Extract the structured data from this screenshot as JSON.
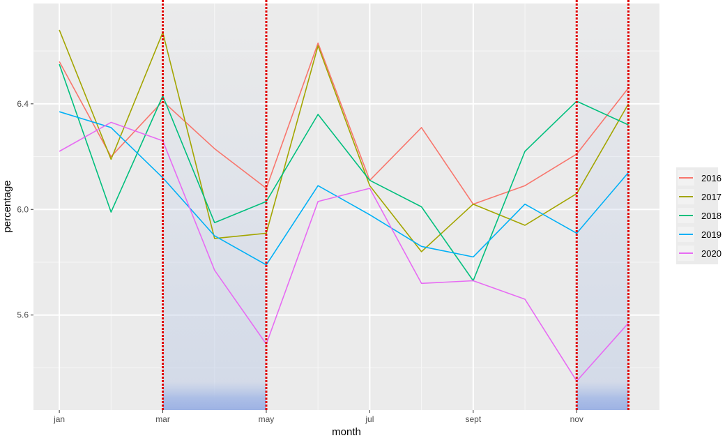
{
  "chart_data": {
    "type": "line",
    "xlabel": "month",
    "ylabel": "percentage",
    "x": [
      1,
      2,
      3,
      4,
      5,
      6,
      7,
      8,
      9,
      10,
      11,
      12
    ],
    "x_tick_labels": [
      {
        "x": 1,
        "label": "jan"
      },
      {
        "x": 3,
        "label": "mar"
      },
      {
        "x": 5,
        "label": "may"
      },
      {
        "x": 7,
        "label": "jul"
      },
      {
        "x": 9,
        "label": "sept"
      },
      {
        "x": 11,
        "label": "nov"
      }
    ],
    "y_ticks": [
      {
        "value": 5.6,
        "label": "5.6"
      },
      {
        "value": 6.0,
        "label": "6.0"
      },
      {
        "value": 6.4,
        "label": "6.4"
      }
    ],
    "xlim": [
      0.5,
      12.6
    ],
    "ylim": [
      5.24,
      6.78
    ],
    "grid": true,
    "legend_position": "right",
    "series": [
      {
        "name": "2016",
        "color": "#f8766d",
        "values": [
          6.56,
          6.2,
          6.41,
          6.23,
          6.08,
          6.63,
          6.11,
          6.31,
          6.02,
          6.09,
          6.21,
          6.46
        ]
      },
      {
        "name": "2017",
        "color": "#a3a500",
        "values": [
          6.68,
          6.19,
          6.67,
          5.89,
          5.91,
          6.62,
          6.09,
          5.84,
          6.02,
          5.94,
          6.06,
          6.4
        ]
      },
      {
        "name": "2018",
        "color": "#00bf7d",
        "values": [
          6.55,
          5.99,
          6.43,
          5.95,
          6.03,
          6.36,
          6.11,
          6.01,
          5.73,
          6.22,
          6.41,
          6.32
        ]
      },
      {
        "name": "2019",
        "color": "#00b0f6",
        "values": [
          6.37,
          6.31,
          6.12,
          5.9,
          5.79,
          6.09,
          5.98,
          5.86,
          5.82,
          6.02,
          5.91,
          6.14
        ]
      },
      {
        "name": "2020",
        "color": "#e76bf3",
        "values": [
          6.22,
          6.33,
          6.26,
          5.77,
          5.49,
          6.03,
          6.08,
          5.72,
          5.73,
          5.66,
          5.35,
          5.57
        ]
      }
    ],
    "shaded_ranges": [
      {
        "from": 3,
        "to": 5,
        "color": "#c0cde6"
      },
      {
        "from": 11,
        "to": 12,
        "color": "#c0cde6"
      }
    ],
    "vertical_lines": [
      {
        "x": 3,
        "color": "#e00000"
      },
      {
        "x": 5,
        "color": "#e00000"
      },
      {
        "x": 11,
        "color": "#e00000"
      },
      {
        "x": 12,
        "color": "#e00000"
      }
    ]
  }
}
